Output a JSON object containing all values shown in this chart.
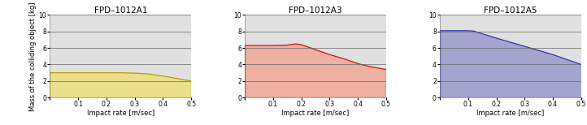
{
  "panels": [
    {
      "title": "FPD–1012A1",
      "line_color": "#b8a000",
      "fill_color": "#eedf80",
      "fill_alpha": 0.85,
      "curve_x": [
        0.0,
        0.05,
        0.1,
        0.15,
        0.2,
        0.25,
        0.3,
        0.35,
        0.4,
        0.45,
        0.5
      ],
      "curve_y": [
        3.0,
        3.0,
        3.0,
        3.0,
        3.0,
        3.0,
        2.95,
        2.85,
        2.6,
        2.3,
        2.0
      ]
    },
    {
      "title": "FPD–1012A3",
      "line_color": "#cc1111",
      "fill_color": "#f0a898",
      "fill_alpha": 0.85,
      "curve_x": [
        0.0,
        0.05,
        0.1,
        0.15,
        0.18,
        0.2,
        0.25,
        0.3,
        0.35,
        0.4,
        0.45,
        0.5
      ],
      "curve_y": [
        6.3,
        6.3,
        6.3,
        6.35,
        6.5,
        6.4,
        5.8,
        5.2,
        4.7,
        4.1,
        3.7,
        3.4
      ]
    },
    {
      "title": "FPD–1012A5",
      "line_color": "#3333aa",
      "fill_color": "#9090c8",
      "fill_alpha": 0.75,
      "curve_x": [
        0.0,
        0.05,
        0.1,
        0.12,
        0.2,
        0.25,
        0.3,
        0.35,
        0.4,
        0.45,
        0.5
      ],
      "curve_y": [
        8.1,
        8.1,
        8.1,
        8.05,
        7.2,
        6.7,
        6.2,
        5.7,
        5.2,
        4.6,
        4.0
      ]
    }
  ],
  "xlim": [
    0.0,
    0.5
  ],
  "ylim": [
    0,
    10
  ],
  "yticks": [
    0,
    2,
    4,
    6,
    8,
    10
  ],
  "xticks": [
    0.0,
    0.1,
    0.2,
    0.3,
    0.4,
    0.5
  ],
  "xtick_labels": [
    "",
    "0.1",
    "0.2",
    "0.3",
    "0.4",
    "0.5"
  ],
  "xlabel": "Impact rate [m/sec]",
  "ylabel": "Mass of the colliding object [kg]",
  "bg_color": "#e0e0e0",
  "grid_color": "#666666",
  "title_fontsize": 7.5,
  "label_fontsize": 6.0,
  "tick_fontsize": 5.5,
  "fig_width": 7.22,
  "fig_height": 1.54,
  "dpi": 100
}
